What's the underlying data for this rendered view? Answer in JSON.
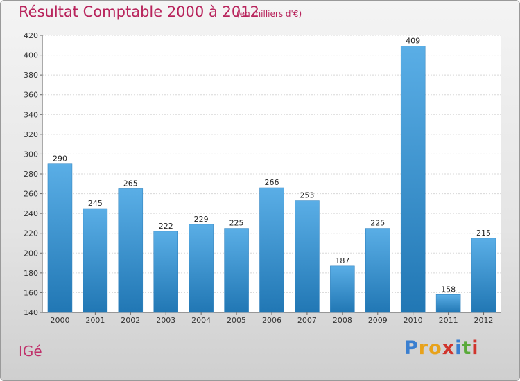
{
  "chart_data": {
    "type": "bar",
    "title": "Résultat Comptable 2000 à 2012",
    "subtitle": "(en milliers d'€)",
    "categories": [
      "2000",
      "2001",
      "2002",
      "2003",
      "2004",
      "2005",
      "2006",
      "2007",
      "2008",
      "2009",
      "2010",
      "2011",
      "2012"
    ],
    "values": [
      290,
      245,
      265,
      222,
      229,
      225,
      266,
      253,
      187,
      225,
      409,
      158,
      215
    ],
    "ylim": [
      140,
      420
    ],
    "yticks": [
      140,
      160,
      180,
      200,
      220,
      240,
      260,
      280,
      300,
      320,
      340,
      360,
      380,
      400,
      420
    ],
    "grid": true,
    "bar_color_top": "#5aaee6",
    "bar_color_bottom": "#2177b4"
  },
  "commune": "IGé",
  "logo": {
    "letters": [
      "P",
      "r",
      "o",
      "x",
      "i",
      "t",
      "i"
    ],
    "colors": [
      "#3a7fd0",
      "#e8a21a",
      "#e8a21a",
      "#d0342c",
      "#3a7fd0",
      "#5aaa3a",
      "#d0342c"
    ]
  }
}
